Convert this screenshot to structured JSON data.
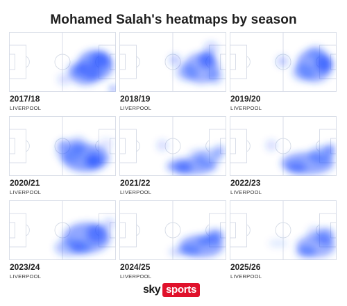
{
  "title": "Mohamed Salah's heatmaps by season",
  "chart_data": {
    "type": "heatmap",
    "title": "Mohamed Salah's heatmaps by season",
    "panels": [
      {
        "season": "2017/18",
        "club": "LIVERPOOL"
      },
      {
        "season": "2018/19",
        "club": "LIVERPOOL"
      },
      {
        "season": "2019/20",
        "club": "LIVERPOOL"
      },
      {
        "season": "2020/21",
        "club": "LIVERPOOL"
      },
      {
        "season": "2021/22",
        "club": "LIVERPOOL"
      },
      {
        "season": "2022/23",
        "club": "LIVERPOOL"
      },
      {
        "season": "2023/24",
        "club": "LIVERPOOL"
      },
      {
        "season": "2024/25",
        "club": "LIVERPOOL"
      },
      {
        "season": "2025/26",
        "club": "LIVERPOOL"
      }
    ]
  },
  "colors": {
    "heat": "#1f4fff",
    "pitch_lines": "#d5dbe6",
    "brand_red": "#e0112b"
  },
  "branding": {
    "sky": "sky",
    "sports": "sports"
  }
}
